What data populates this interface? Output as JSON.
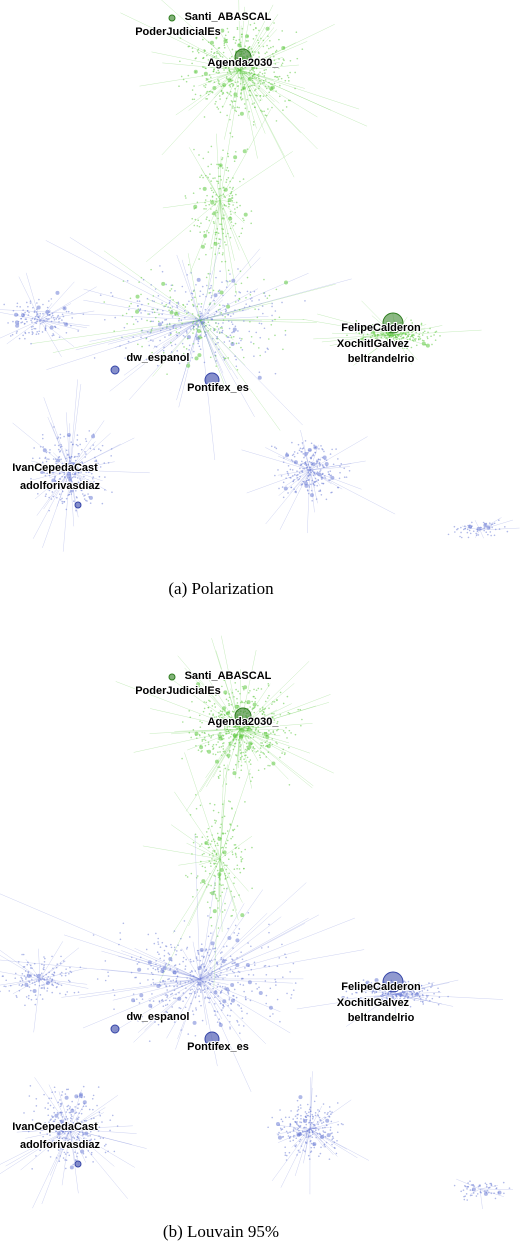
{
  "panels": [
    {
      "caption": "(a) Polarization",
      "labels": [
        "Santi_ABASCAL",
        "PoderJudicialEs",
        "Agenda2030_",
        "FelipeCalderon",
        "XochitlGalvez",
        "beltrandelrio",
        "dw_espanol",
        "Pontifex_es",
        "IvanCepedaCast",
        "adolforivasdiaz"
      ]
    },
    {
      "caption": "(b) Louvain 95%",
      "labels": [
        "Santi_ABASCAL",
        "PoderJudicialEs",
        "Agenda2030_",
        "FelipeCalderon",
        "XochitlGalvez",
        "beltrandelrio",
        "dw_espanol",
        "Pontifex_es",
        "IvanCepedaCast",
        "adolforivasdiaz"
      ]
    }
  ]
}
